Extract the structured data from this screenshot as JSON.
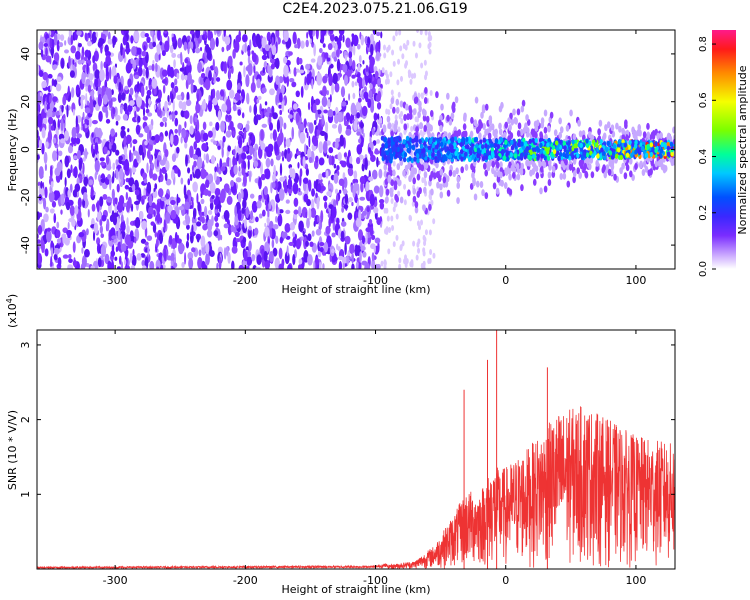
{
  "title": "C2E4.2023.075.21.06.G19",
  "chart_data": [
    {
      "type": "heatmap",
      "xlabel": "Height of straight line (km)",
      "ylabel": "Frequency (Hz)",
      "xlim": [
        -360,
        130
      ],
      "ylim": [
        -50,
        50
      ],
      "xticks": [
        -300,
        -200,
        -100,
        0,
        100
      ],
      "yticks": [
        -40,
        -20,
        0,
        20,
        40
      ],
      "colorbar": {
        "label": "Normalized spectral amplitude",
        "range": [
          0,
          0.85
        ],
        "ticks": [
          0.0,
          0.2,
          0.4,
          0.6,
          0.8
        ]
      },
      "description_data": {
        "noise_region_x": [
          -360,
          -95
        ],
        "signal_center_freq_hz": 0,
        "signal_region_x": [
          -95,
          130
        ]
      }
    },
    {
      "type": "line",
      "xlabel": "Height of straight line (km)",
      "ylabel": "SNR (10 * V/V)",
      "yscale_label": "(x10^4)",
      "xlim": [
        -360,
        130
      ],
      "ylim": [
        0,
        3.2
      ],
      "xticks": [
        -300,
        -200,
        -100,
        0,
        100
      ],
      "yticks": [
        1,
        2,
        3
      ],
      "series_color": "#ee3333",
      "envelope": [
        {
          "x": -360,
          "y": 0.02
        },
        {
          "x": -100,
          "y": 0.03
        },
        {
          "x": -70,
          "y": 0.1
        },
        {
          "x": -55,
          "y": 0.3
        },
        {
          "x": -40,
          "y": 0.7
        },
        {
          "x": -30,
          "y": 1.0
        },
        {
          "x": -20,
          "y": 1.0
        },
        {
          "x": -10,
          "y": 1.3
        },
        {
          "x": 0,
          "y": 1.3
        },
        {
          "x": 20,
          "y": 1.6
        },
        {
          "x": 40,
          "y": 2.0
        },
        {
          "x": 60,
          "y": 2.1
        },
        {
          "x": 80,
          "y": 1.9
        },
        {
          "x": 100,
          "y": 1.7
        },
        {
          "x": 130,
          "y": 1.6
        }
      ],
      "spikes": [
        {
          "x": -32,
          "y": 2.4
        },
        {
          "x": -14,
          "y": 2.8
        },
        {
          "x": -7,
          "y": 3.2
        },
        {
          "x": 32,
          "y": 2.7
        }
      ]
    }
  ]
}
